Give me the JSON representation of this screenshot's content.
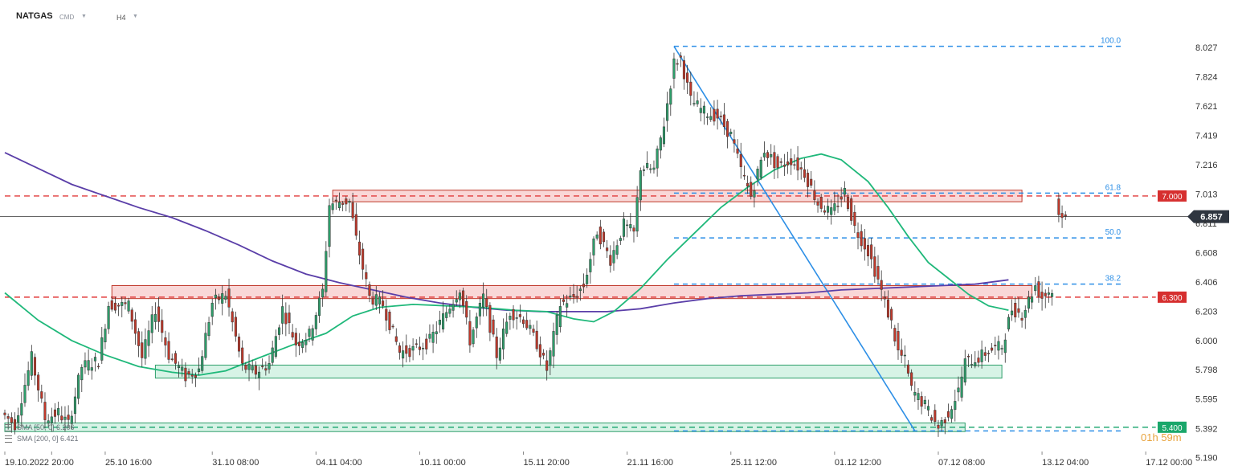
{
  "header": {
    "symbol": "NATGAS",
    "market": "CMD",
    "timeframe": "H4"
  },
  "legend": {
    "sma50": "SMA [50, 0] 6.206",
    "sma200": "SMA [200, 0] 6.421"
  },
  "countdown": {
    "hours": "01",
    "h_unit": "h",
    "minutes": "59",
    "m_unit": "m"
  },
  "colors": {
    "bull": "#2e9e6b",
    "bear": "#c0392b",
    "sma50": "#1fb87a",
    "sma200": "#5a3ea8",
    "fib": "#2d8fe6",
    "resistance_fill": "#f7c9c9",
    "support_fill": "#c9efdd",
    "price_tag": "#2f3640"
  },
  "chart_data": {
    "type": "candlestick",
    "symbol": "NATGAS",
    "timeframe": "H4",
    "y_ticks": [
      "8.027",
      "7.824",
      "7.621",
      "7.419",
      "7.216",
      "7.013",
      "6.811",
      "6.608",
      "6.406",
      "6.203",
      "6.000",
      "5.798",
      "5.595",
      "5.392",
      "5.190"
    ],
    "ylim": [
      5.16,
      8.3
    ],
    "x_ticks": [
      {
        "label": "19.10.2022",
        "i": 0
      },
      {
        "label": "20:00",
        "i": 14
      },
      {
        "label": "25.10 16:00",
        "i": 30
      },
      {
        "label": "31.10 08:00",
        "i": 62
      },
      {
        "label": "04.11 04:00",
        "i": 93
      },
      {
        "label": "10.11 00:00",
        "i": 124
      },
      {
        "label": "15.11 20:00",
        "i": 155
      },
      {
        "label": "21.11 16:00",
        "i": 186
      },
      {
        "label": "25.11 12:00",
        "i": 217
      },
      {
        "label": "01.12 12:00",
        "i": 248
      },
      {
        "label": "07.12 08:00",
        "i": 279
      },
      {
        "label": "13.12 04:00",
        "i": 310
      },
      {
        "label": "17.12 00:00",
        "i": 341
      }
    ],
    "x_count": 352,
    "current_price": "6.857",
    "horizontal_levels": [
      {
        "price": 7.0,
        "label": "7.000",
        "style": "resistance"
      },
      {
        "price": 6.3,
        "label": "6.300",
        "style": "resistance"
      },
      {
        "price": 5.4,
        "label": "5.400",
        "style": "support"
      }
    ],
    "zones": [
      {
        "kind": "resistance",
        "from": 6.96,
        "to": 7.04,
        "i0": 98,
        "i1": 304
      },
      {
        "kind": "resistance",
        "from": 6.29,
        "to": 6.38,
        "i0": 32,
        "i1": 307
      },
      {
        "kind": "support",
        "from": 5.74,
        "to": 5.83,
        "i0": 45,
        "i1": 298
      },
      {
        "kind": "support",
        "from": 5.37,
        "to": 5.43,
        "i0": 0,
        "i1": 287
      }
    ],
    "fibonacci": {
      "from": {
        "i": 200,
        "price": 8.035
      },
      "to": {
        "i": 272,
        "price": 5.375
      },
      "levels": [
        {
          "ratio": "100.0",
          "price": 8.035
        },
        {
          "ratio": "61.8",
          "price": 7.02
        },
        {
          "ratio": "50.0",
          "price": 6.71
        },
        {
          "ratio": "38.2",
          "price": 6.39
        },
        {
          "ratio": "0",
          "price": 5.375
        }
      ]
    },
    "sma50": [
      [
        0,
        6.33
      ],
      [
        10,
        6.14
      ],
      [
        20,
        6.0
      ],
      [
        30,
        5.9
      ],
      [
        40,
        5.82
      ],
      [
        50,
        5.78
      ],
      [
        58,
        5.76
      ],
      [
        66,
        5.79
      ],
      [
        76,
        5.88
      ],
      [
        86,
        5.97
      ],
      [
        96,
        6.05
      ],
      [
        104,
        6.17
      ],
      [
        112,
        6.23
      ],
      [
        122,
        6.25
      ],
      [
        132,
        6.24
      ],
      [
        142,
        6.23
      ],
      [
        152,
        6.21
      ],
      [
        162,
        6.2
      ],
      [
        170,
        6.15
      ],
      [
        176,
        6.13
      ],
      [
        182,
        6.2
      ],
      [
        190,
        6.36
      ],
      [
        198,
        6.56
      ],
      [
        206,
        6.74
      ],
      [
        214,
        6.92
      ],
      [
        222,
        7.06
      ],
      [
        230,
        7.18
      ],
      [
        238,
        7.26
      ],
      [
        244,
        7.29
      ],
      [
        250,
        7.25
      ],
      [
        258,
        7.1
      ],
      [
        264,
        6.92
      ],
      [
        270,
        6.72
      ],
      [
        276,
        6.54
      ],
      [
        282,
        6.43
      ],
      [
        288,
        6.32
      ],
      [
        294,
        6.24
      ],
      [
        300,
        6.21
      ]
    ],
    "sma200": [
      [
        0,
        7.3
      ],
      [
        10,
        7.19
      ],
      [
        20,
        7.08
      ],
      [
        30,
        7.0
      ],
      [
        40,
        6.92
      ],
      [
        50,
        6.85
      ],
      [
        60,
        6.76
      ],
      [
        70,
        6.66
      ],
      [
        80,
        6.55
      ],
      [
        90,
        6.46
      ],
      [
        100,
        6.4
      ],
      [
        110,
        6.35
      ],
      [
        120,
        6.3
      ],
      [
        130,
        6.26
      ],
      [
        140,
        6.23
      ],
      [
        150,
        6.21
      ],
      [
        160,
        6.2
      ],
      [
        170,
        6.2
      ],
      [
        180,
        6.2
      ],
      [
        190,
        6.22
      ],
      [
        200,
        6.26
      ],
      [
        210,
        6.29
      ],
      [
        220,
        6.31
      ],
      [
        230,
        6.32
      ],
      [
        240,
        6.33
      ],
      [
        250,
        6.35
      ],
      [
        260,
        6.36
      ],
      [
        270,
        6.37
      ],
      [
        280,
        6.38
      ],
      [
        290,
        6.39
      ],
      [
        300,
        6.42
      ]
    ],
    "candle_path": [
      [
        0,
        5.5
      ],
      [
        4,
        5.42
      ],
      [
        9,
        5.88
      ],
      [
        13,
        5.46
      ],
      [
        17,
        5.5
      ],
      [
        20,
        5.42
      ],
      [
        24,
        5.82
      ],
      [
        29,
        5.86
      ],
      [
        32,
        6.25
      ],
      [
        38,
        6.24
      ],
      [
        42,
        5.88
      ],
      [
        46,
        6.22
      ],
      [
        50,
        5.9
      ],
      [
        55,
        5.75
      ],
      [
        59,
        5.8
      ],
      [
        63,
        6.26
      ],
      [
        67,
        6.32
      ],
      [
        72,
        5.82
      ],
      [
        76,
        5.78
      ],
      [
        80,
        5.84
      ],
      [
        84,
        6.22
      ],
      [
        88,
        5.98
      ],
      [
        92,
        6.04
      ],
      [
        96,
        6.34
      ],
      [
        98,
        6.94
      ],
      [
        101,
        6.96
      ],
      [
        104,
        6.96
      ],
      [
        106,
        6.7
      ],
      [
        110,
        6.3
      ],
      [
        114,
        6.25
      ],
      [
        119,
        5.92
      ],
      [
        124,
        5.94
      ],
      [
        128,
        6.0
      ],
      [
        133,
        6.2
      ],
      [
        137,
        6.36
      ],
      [
        140,
        6.0
      ],
      [
        144,
        6.3
      ],
      [
        148,
        5.9
      ],
      [
        152,
        6.2
      ],
      [
        156,
        6.15
      ],
      [
        160,
        5.98
      ],
      [
        163,
        5.8
      ],
      [
        167,
        6.25
      ],
      [
        171,
        6.3
      ],
      [
        174,
        6.38
      ],
      [
        178,
        6.76
      ],
      [
        182,
        6.56
      ],
      [
        186,
        6.8
      ],
      [
        189,
        6.74
      ],
      [
        191,
        7.2
      ],
      [
        195,
        7.18
      ],
      [
        198,
        7.5
      ],
      [
        201,
        7.92
      ],
      [
        203,
        7.95
      ],
      [
        206,
        7.66
      ],
      [
        210,
        7.58
      ],
      [
        214,
        7.55
      ],
      [
        218,
        7.42
      ],
      [
        221,
        7.18
      ],
      [
        224,
        7.0
      ],
      [
        228,
        7.32
      ],
      [
        232,
        7.2
      ],
      [
        236,
        7.25
      ],
      [
        240,
        7.16
      ],
      [
        244,
        6.95
      ],
      [
        248,
        6.88
      ],
      [
        252,
        7.03
      ],
      [
        255,
        6.78
      ],
      [
        259,
        6.62
      ],
      [
        262,
        6.42
      ],
      [
        264,
        6.26
      ],
      [
        266,
        6.12
      ],
      [
        268,
        5.92
      ],
      [
        270,
        5.86
      ],
      [
        272,
        5.66
      ],
      [
        276,
        5.55
      ],
      [
        280,
        5.4
      ],
      [
        283,
        5.5
      ],
      [
        286,
        5.65
      ],
      [
        288,
        5.85
      ],
      [
        292,
        5.88
      ],
      [
        295,
        5.93
      ],
      [
        299,
        5.96
      ],
      [
        302,
        6.22
      ],
      [
        305,
        6.18
      ],
      [
        307,
        6.28
      ],
      [
        309,
        6.38
      ],
      [
        311,
        6.3
      ],
      [
        313,
        6.34
      ]
    ],
    "last_candles": [
      [
        6.98,
        6.87
      ],
      [
        6.88,
        6.85
      ],
      [
        6.87,
        6.86
      ]
    ]
  }
}
